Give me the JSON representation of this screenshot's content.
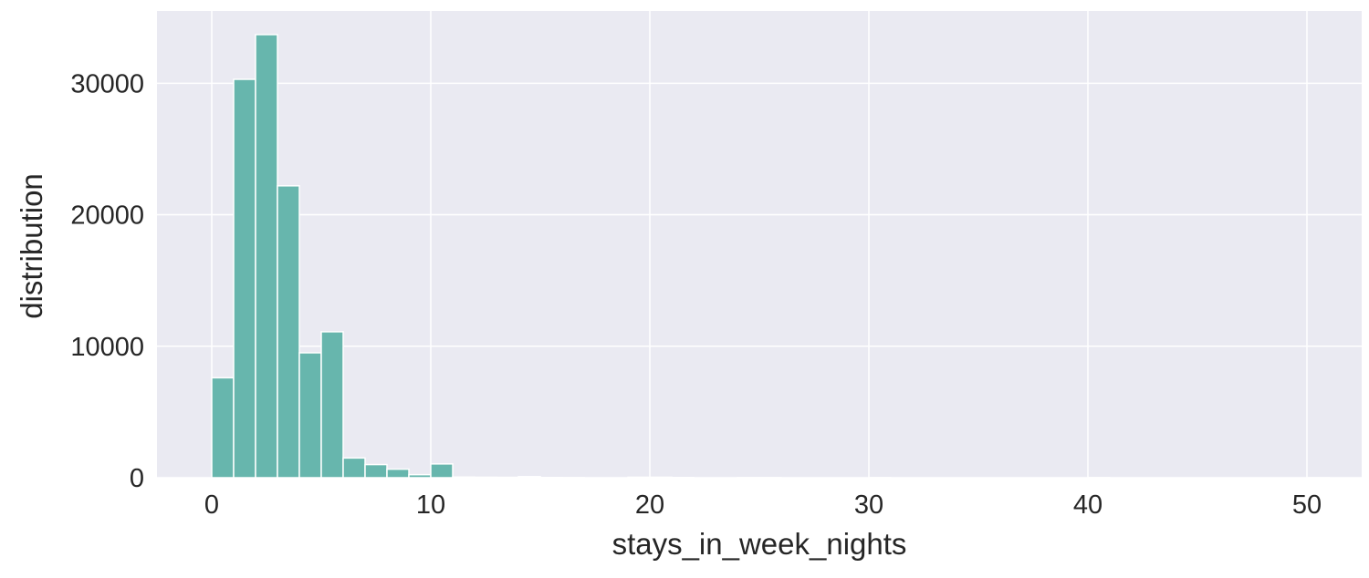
{
  "chart_data": {
    "type": "bar",
    "subtype": "histogram",
    "xlabel": "stays_in_week_nights",
    "ylabel": "distribution",
    "xlim": [
      -2.5,
      52.5
    ],
    "ylim": [
      0,
      35500
    ],
    "xticks": [
      0,
      10,
      20,
      30,
      40,
      50
    ],
    "yticks": [
      0,
      10000,
      20000,
      30000
    ],
    "grid": true,
    "background": "#eaeaf2",
    "bar_color": "#67b6ad",
    "bins": [
      {
        "x0": 0,
        "x1": 1,
        "value": 7600
      },
      {
        "x0": 1,
        "x1": 2,
        "value": 30300
      },
      {
        "x0": 2,
        "x1": 3,
        "value": 33700
      },
      {
        "x0": 3,
        "x1": 4,
        "value": 22200
      },
      {
        "x0": 4,
        "x1": 5,
        "value": 9500
      },
      {
        "x0": 5,
        "x1": 6,
        "value": 11100
      },
      {
        "x0": 6,
        "x1": 7,
        "value": 1500
      },
      {
        "x0": 7,
        "x1": 8,
        "value": 1000
      },
      {
        "x0": 8,
        "x1": 9,
        "value": 650
      },
      {
        "x0": 9,
        "x1": 10,
        "value": 230
      },
      {
        "x0": 10,
        "x1": 11,
        "value": 1050
      },
      {
        "x0": 11,
        "x1": 12,
        "value": 50
      },
      {
        "x0": 12,
        "x1": 13,
        "value": 40
      },
      {
        "x0": 13,
        "x1": 14,
        "value": 30
      },
      {
        "x0": 14,
        "x1": 15,
        "value": 85
      },
      {
        "x0": 15,
        "x1": 16,
        "value": 20
      },
      {
        "x0": 16,
        "x1": 17,
        "value": 10
      },
      {
        "x0": 19,
        "x1": 20,
        "value": 40
      },
      {
        "x0": 20,
        "x1": 21,
        "value": 40
      },
      {
        "x0": 21,
        "x1": 22,
        "value": 15
      },
      {
        "x0": 24,
        "x1": 25,
        "value": 5
      },
      {
        "x0": 25,
        "x1": 26,
        "value": 6
      },
      {
        "x0": 30,
        "x1": 31,
        "value": 5
      },
      {
        "x0": 40,
        "x1": 41,
        "value": 2
      },
      {
        "x0": 50,
        "x1": 51,
        "value": 1
      }
    ]
  }
}
